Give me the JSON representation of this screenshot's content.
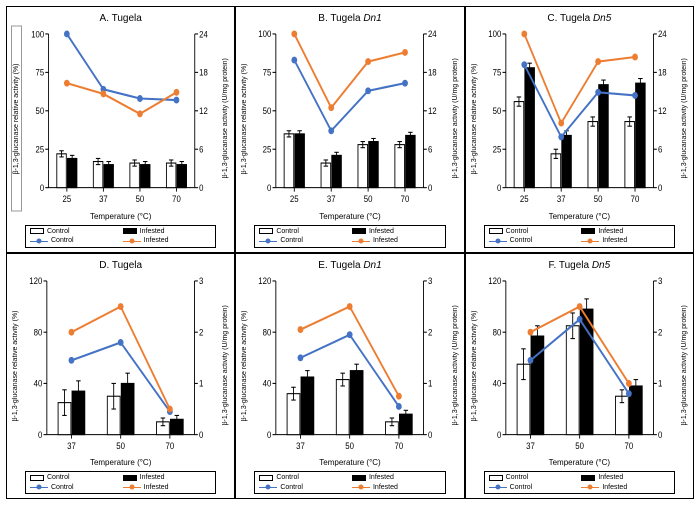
{
  "colors": {
    "bar_control_fill": "#ffffff",
    "bar_control_stroke": "#000000",
    "bar_infested_fill": "#000000",
    "bar_infested_stroke": "#000000",
    "line_control": "#4472c4",
    "line_infested": "#ed7d31",
    "axis": "#000000"
  },
  "labels": {
    "ylabel_left": "β-1,3-glucanase relative activity (%)",
    "ylabel_right": "β-1,3-glucanase activity (U/mg protein)",
    "xlabel": "Temperature (°C)",
    "legend_bar_control": "Control",
    "legend_bar_infested": "Infested",
    "legend_line_control": "Control",
    "legend_line_infested": "Infested"
  },
  "panels": [
    {
      "key": "A",
      "title_prefix": "A. Tugela",
      "title_italic": "",
      "ylabel_left_boxed": true,
      "x_labels": [
        "25",
        "37",
        "50",
        "70"
      ],
      "left_axis": {
        "min": 0,
        "max": 100,
        "ticks": [
          0,
          25,
          50,
          75,
          100
        ]
      },
      "right_axis": {
        "min": 0,
        "max": 24,
        "ticks": [
          0,
          6,
          12,
          18,
          24
        ]
      },
      "bars": {
        "control": [
          22,
          17,
          16,
          16
        ],
        "control_err": [
          2,
          2,
          2,
          2
        ],
        "infested": [
          19,
          15,
          15,
          15
        ],
        "infested_err": [
          2,
          2,
          2,
          2
        ],
        "width": 0.26
      },
      "lines": {
        "control": [
          100,
          64,
          58,
          57
        ],
        "infested": [
          68,
          61,
          48,
          62
        ]
      }
    },
    {
      "key": "B",
      "title_prefix": "B. Tugela ",
      "title_italic": "Dn1",
      "ylabel_left_boxed": false,
      "x_labels": [
        "25",
        "37",
        "50",
        "70"
      ],
      "left_axis": {
        "min": 0,
        "max": 100,
        "ticks": [
          0,
          25,
          50,
          75,
          100
        ]
      },
      "right_axis": {
        "min": 0,
        "max": 24,
        "ticks": [
          0,
          6,
          12,
          18,
          24
        ]
      },
      "bars": {
        "control": [
          35,
          16,
          28,
          28
        ],
        "control_err": [
          2,
          2,
          2,
          2
        ],
        "infested": [
          35,
          21,
          30,
          34
        ],
        "infested_err": [
          2,
          2,
          2,
          2
        ],
        "width": 0.26
      },
      "lines": {
        "control": [
          83,
          37,
          63,
          68
        ],
        "infested": [
          100,
          52,
          82,
          88
        ]
      }
    },
    {
      "key": "C",
      "title_prefix": "C. Tugela ",
      "title_italic": "Dn5",
      "ylabel_left_boxed": false,
      "x_labels": [
        "25",
        "37",
        "50",
        "70"
      ],
      "left_axis": {
        "min": 0,
        "max": 100,
        "ticks": [
          0,
          25,
          50,
          75,
          100
        ]
      },
      "right_axis": {
        "min": 0,
        "max": 24,
        "ticks": [
          0,
          6,
          12,
          18,
          24
        ]
      },
      "bars": {
        "control": [
          56,
          22,
          43,
          43
        ],
        "control_err": [
          3,
          3,
          3,
          3
        ],
        "infested": [
          78,
          34,
          67,
          68
        ],
        "infested_err": [
          3,
          3,
          3,
          3
        ],
        "width": 0.26
      },
      "lines": {
        "control": [
          80,
          33,
          62,
          60
        ],
        "infested": [
          100,
          42,
          82,
          85
        ]
      }
    },
    {
      "key": "D",
      "title_prefix": "D. Tugela",
      "title_italic": "",
      "ylabel_left_boxed": false,
      "x_labels": [
        "37",
        "50",
        "70"
      ],
      "left_axis": {
        "min": 0,
        "max": 120,
        "ticks": [
          0,
          40,
          80,
          120
        ]
      },
      "right_axis": {
        "min": 0,
        "max": 3,
        "ticks": [
          0,
          1,
          2,
          3
        ]
      },
      "bars": {
        "control": [
          25,
          30,
          10
        ],
        "control_err": [
          10,
          10,
          3
        ],
        "infested": [
          34,
          40,
          12
        ],
        "infested_err": [
          8,
          8,
          3
        ],
        "width": 0.26
      },
      "lines": {
        "control": [
          58,
          72,
          18
        ],
        "infested": [
          80,
          100,
          20
        ]
      }
    },
    {
      "key": "E",
      "title_prefix": "E. Tugela ",
      "title_italic": "Dn1",
      "ylabel_left_boxed": false,
      "x_labels": [
        "37",
        "50",
        "70"
      ],
      "left_axis": {
        "min": 0,
        "max": 120,
        "ticks": [
          0,
          40,
          80,
          120
        ]
      },
      "right_axis": {
        "min": 0,
        "max": 3,
        "ticks": [
          0,
          1,
          2,
          3
        ]
      },
      "bars": {
        "control": [
          32,
          43,
          10
        ],
        "control_err": [
          5,
          5,
          3
        ],
        "infested": [
          45,
          50,
          16
        ],
        "infested_err": [
          5,
          5,
          3
        ],
        "width": 0.26
      },
      "lines": {
        "control": [
          60,
          78,
          22
        ],
        "infested": [
          82,
          100,
          30
        ]
      }
    },
    {
      "key": "F",
      "title_prefix": "F. Tugela ",
      "title_italic": "Dn5",
      "ylabel_left_boxed": false,
      "x_labels": [
        "37",
        "50",
        "70"
      ],
      "left_axis": {
        "min": 0,
        "max": 120,
        "ticks": [
          0,
          40,
          80,
          120
        ]
      },
      "right_axis": {
        "min": 0,
        "max": 3,
        "ticks": [
          0,
          1,
          2,
          3
        ]
      },
      "bars": {
        "control": [
          55,
          85,
          30
        ],
        "control_err": [
          12,
          10,
          5
        ],
        "infested": [
          77,
          98,
          38
        ],
        "infested_err": [
          8,
          8,
          5
        ],
        "width": 0.26
      },
      "lines": {
        "control": [
          58,
          90,
          32
        ],
        "infested": [
          80,
          100,
          40
        ]
      }
    }
  ]
}
